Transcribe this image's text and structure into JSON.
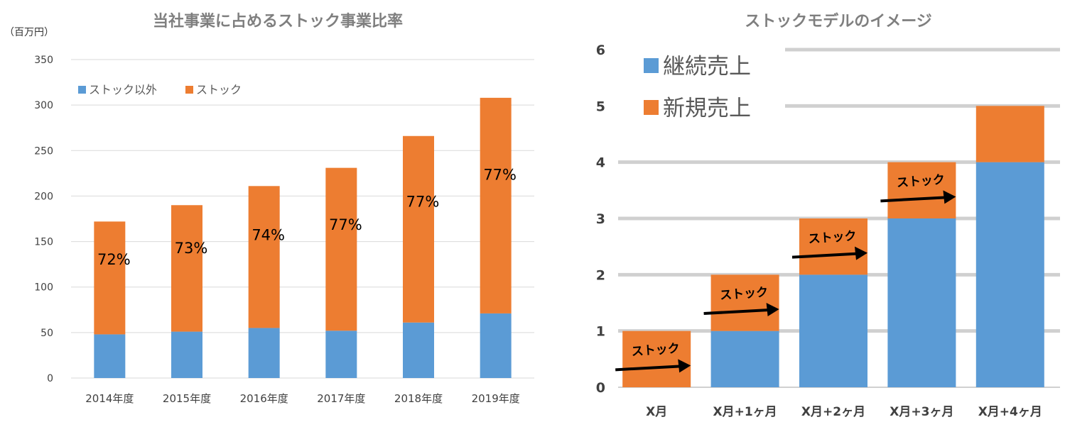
{
  "colors": {
    "blue": "#5b9bd5",
    "orange": "#ed7d31",
    "grid_left": "#d9d9d9",
    "grid_right": "#d0d0d0",
    "arrow": "#000000"
  },
  "chart_data": [
    {
      "type": "bar",
      "stacked": true,
      "title": "当社事業に占めるストック事業比率",
      "unit_label": "（百万円）",
      "categories": [
        "2014年度",
        "2015年度",
        "2016年度",
        "2017年度",
        "2018年度",
        "2019年度"
      ],
      "series": [
        {
          "name": "ストック以外",
          "color": "#5b9bd5",
          "values": [
            48,
            51,
            55,
            52,
            61,
            71
          ]
        },
        {
          "name": "ストック",
          "color": "#ed7d31",
          "values": [
            124,
            139,
            156,
            179,
            205,
            237
          ]
        }
      ],
      "data_labels": [
        "72%",
        "73%",
        "74%",
        "77%",
        "77%",
        "77%"
      ],
      "ylim": [
        0,
        350
      ],
      "yticks": [
        0,
        50,
        100,
        150,
        200,
        250,
        300,
        350
      ],
      "grid": true,
      "legend_position": "top-left"
    },
    {
      "type": "bar",
      "stacked": true,
      "title": "ストックモデルのイメージ",
      "categories": [
        "X月",
        "X月+1ヶ月",
        "X月+2ヶ月",
        "X月+3ヶ月",
        "X月+4ヶ月"
      ],
      "series": [
        {
          "name": "継続売上",
          "color": "#5b9bd5",
          "values": [
            0,
            1,
            2,
            3,
            4
          ]
        },
        {
          "name": "新規売上",
          "color": "#ed7d31",
          "values": [
            1,
            1,
            1,
            1,
            1
          ]
        }
      ],
      "annotations": [
        "ストック",
        "ストック",
        "ストック",
        "ストック"
      ],
      "ylim": [
        0,
        6
      ],
      "yticks": [
        0,
        1,
        2,
        3,
        4,
        5,
        6
      ],
      "grid": true,
      "legend_position": "top-left"
    }
  ]
}
